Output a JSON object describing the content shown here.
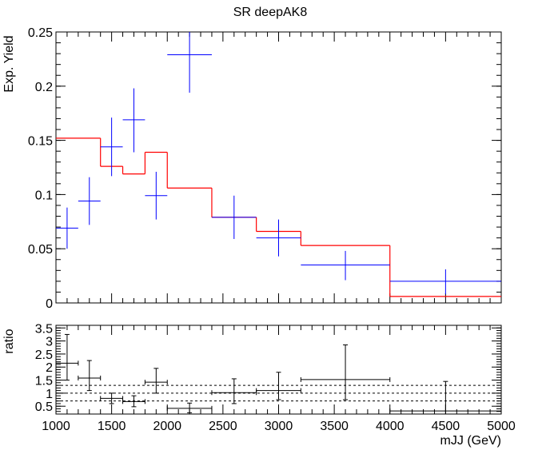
{
  "chart_data": [
    {
      "type": "histogram",
      "title": "SR deepAK8",
      "ylabel": "Exp. Yield",
      "xlim": [
        1000,
        5000
      ],
      "ylim": [
        0,
        0.25
      ],
      "y_ticks": [
        "0",
        "0.05",
        "0.1",
        "0.15",
        "0.2",
        "0.25"
      ],
      "x_tick_values": [
        1000,
        1500,
        2000,
        2500,
        3000,
        3500,
        4000,
        4500,
        5000
      ],
      "colors": {
        "red_hist": "#ff0000",
        "blue_points": "#0000ff"
      },
      "red_histogram": {
        "bin_edges": [
          1000,
          1400,
          1600,
          1800,
          2000,
          2400,
          2800,
          3200,
          4000,
          5000
        ],
        "values": [
          0.152,
          0.126,
          0.119,
          0.139,
          0.106,
          0.079,
          0.066,
          0.053,
          0.006
        ]
      },
      "blue_points": [
        {
          "x": 1100,
          "xlo": 1000,
          "xhi": 1200,
          "y": 0.069,
          "ylo": 0.05,
          "yhi": 0.088
        },
        {
          "x": 1300,
          "xlo": 1200,
          "xhi": 1400,
          "y": 0.094,
          "ylo": 0.072,
          "yhi": 0.116
        },
        {
          "x": 1500,
          "xlo": 1400,
          "xhi": 1600,
          "y": 0.144,
          "ylo": 0.117,
          "yhi": 0.171
        },
        {
          "x": 1700,
          "xlo": 1600,
          "xhi": 1800,
          "y": 0.169,
          "ylo": 0.139,
          "yhi": 0.198
        },
        {
          "x": 1900,
          "xlo": 1800,
          "xhi": 2000,
          "y": 0.099,
          "ylo": 0.077,
          "yhi": 0.121
        },
        {
          "x": 2200,
          "xlo": 2000,
          "xhi": 2400,
          "y": 0.229,
          "ylo": 0.194,
          "yhi": 0.25
        },
        {
          "x": 2600,
          "xlo": 2400,
          "xhi": 2800,
          "y": 0.079,
          "ylo": 0.059,
          "yhi": 0.099
        },
        {
          "x": 3000,
          "xlo": 2800,
          "xhi": 3200,
          "y": 0.06,
          "ylo": 0.043,
          "yhi": 0.077
        },
        {
          "x": 3600,
          "xlo": 3200,
          "xhi": 4000,
          "y": 0.035,
          "ylo": 0.021,
          "yhi": 0.048
        },
        {
          "x": 4500,
          "xlo": 4000,
          "xhi": 5000,
          "y": 0.02,
          "ylo": 0.008,
          "yhi": 0.031
        }
      ]
    },
    {
      "type": "scatter",
      "ylabel": "ratio",
      "xlabel": "mJJ (GeV)",
      "xlim": [
        1000,
        5000
      ],
      "ylim": [
        0.2,
        3.6
      ],
      "y_ticks": [
        "0.5",
        "1",
        "1.5",
        "2",
        "2.5",
        "3",
        "3.5"
      ],
      "x_ticks": [
        "1000",
        "1500",
        "2000",
        "2500",
        "3000",
        "3500",
        "4000",
        "4500",
        "5000"
      ],
      "dashed_lines": [
        0.7,
        1.0,
        1.3
      ],
      "points": [
        {
          "x": 1100,
          "xlo": 1000,
          "xhi": 1200,
          "y": 2.15,
          "ylo": 1.5,
          "yhi": 3.25
        },
        {
          "x": 1300,
          "xlo": 1200,
          "xhi": 1400,
          "y": 1.58,
          "ylo": 1.1,
          "yhi": 2.25
        },
        {
          "x": 1500,
          "xlo": 1400,
          "xhi": 1600,
          "y": 0.8,
          "ylo": 0.6,
          "yhi": 1.0
        },
        {
          "x": 1700,
          "xlo": 1600,
          "xhi": 1800,
          "y": 0.68,
          "ylo": 0.48,
          "yhi": 0.9
        },
        {
          "x": 1900,
          "xlo": 1800,
          "xhi": 2000,
          "y": 1.42,
          "ylo": 1.0,
          "yhi": 1.95
        },
        {
          "x": 2200,
          "xlo": 2000,
          "xhi": 2400,
          "y": 0.42,
          "ylo": 0.25,
          "yhi": 0.62
        },
        {
          "x": 2600,
          "xlo": 2400,
          "xhi": 2800,
          "y": 1.02,
          "ylo": 0.6,
          "yhi": 1.55
        },
        {
          "x": 3000,
          "xlo": 2800,
          "xhi": 3200,
          "y": 1.1,
          "ylo": 0.75,
          "yhi": 1.8
        },
        {
          "x": 3600,
          "xlo": 3200,
          "xhi": 4000,
          "y": 1.52,
          "ylo": 0.75,
          "yhi": 2.85
        },
        {
          "x": 4500,
          "xlo": 4000,
          "xhi": 5000,
          "y": 0.32,
          "ylo": 0.2,
          "yhi": 1.45
        }
      ]
    }
  ]
}
